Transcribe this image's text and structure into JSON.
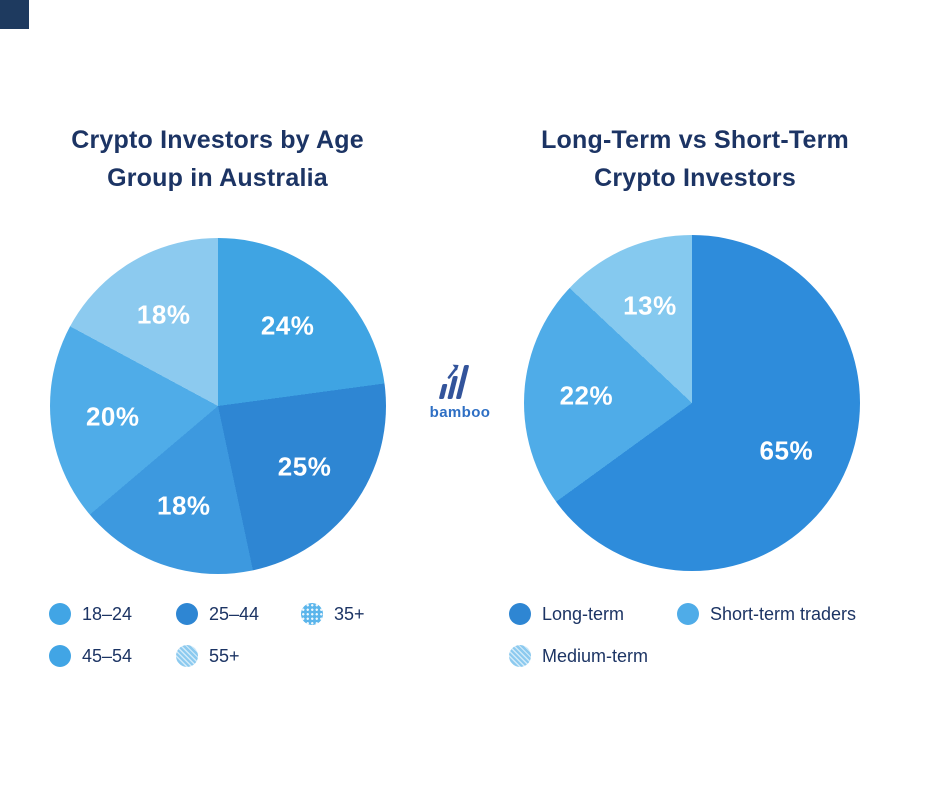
{
  "page": {
    "colors": {
      "background": "#ffffff",
      "navy": "#1c3464",
      "logo_bars": "#33549b",
      "logo_text": "#2e6fc4",
      "corner_mark": "#1e3a5f",
      "slice_label": "#ffffff"
    }
  },
  "logo": {
    "text": "bamboo"
  },
  "chart_data": [
    {
      "type": "pie",
      "title": "Crypto Investors by Age Group in Australia",
      "title_lines": [
        "Crypto Investors by Age",
        "Group in Australia"
      ],
      "start_angle_deg": 0,
      "direction": "clockwise",
      "legend_position": "bottom-left",
      "slices": [
        {
          "label": "18–24",
          "value": 24,
          "display": "24%",
          "color": "#3fa4e3"
        },
        {
          "label": "25–44",
          "value": 25,
          "display": "25%",
          "color": "#2e86d3"
        },
        {
          "label": "35+",
          "value": 18,
          "display": "18%",
          "color": "#3d99df"
        },
        {
          "label": "45–54",
          "value": 20,
          "display": "20%",
          "color": "#4face8"
        },
        {
          "label": "55+",
          "value": 18,
          "display": "18%",
          "color": "#8ccaef"
        }
      ],
      "legend": [
        {
          "label": "18–24",
          "color": "#41a5e5",
          "texture": "solid"
        },
        {
          "label": "25–44",
          "color": "#2e86d3",
          "texture": "solid"
        },
        {
          "label": "35+",
          "color": "#5bb5eb",
          "texture": "dots"
        },
        {
          "label": "45–54",
          "color": "#41a5e5",
          "texture": "solid"
        },
        {
          "label": "55+",
          "color": "#8ccaef",
          "texture": "hatch"
        }
      ]
    },
    {
      "type": "pie",
      "title": "Long-Term vs Short-Term Crypto Investors",
      "title_lines": [
        "Long-Term vs Short-Term",
        "Crypto Investors"
      ],
      "start_angle_deg": 0,
      "direction": "clockwise",
      "legend_position": "bottom-left",
      "slices": [
        {
          "label": "Long-term",
          "value": 65,
          "display": "65%",
          "color": "#2e8cdb"
        },
        {
          "label": "Short-term traders",
          "value": 22,
          "display": "22%",
          "color": "#4face8"
        },
        {
          "label": "Medium-term",
          "value": 13,
          "display": "13%",
          "color": "#85c9ef"
        }
      ],
      "legend": [
        {
          "label": "Long-term",
          "color": "#2e86d3",
          "texture": "solid"
        },
        {
          "label": "Short-term traders",
          "color": "#4face8",
          "texture": "solid"
        },
        {
          "label": "Medium-term",
          "color": "#8ccaef",
          "texture": "hatch"
        }
      ]
    }
  ]
}
